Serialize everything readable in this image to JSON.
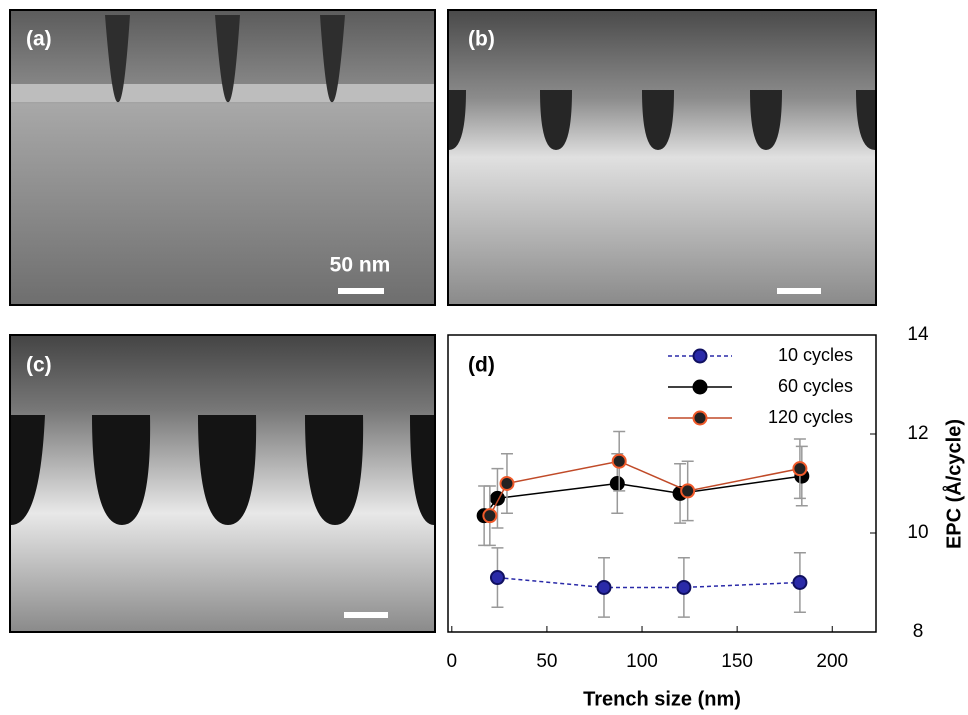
{
  "panels": [
    "(a)",
    "(b)",
    "(c)"
  ],
  "scale_bar_label": "50 nm",
  "chart_data": {
    "type": "scatter",
    "panel_label": "(d)",
    "xlabel": "Trench size (nm)",
    "ylabel": "EPC (Å/cycle)",
    "xlim": [
      -2,
      223
    ],
    "ylim": [
      8,
      14
    ],
    "xticks": [
      0,
      50,
      100,
      150,
      200
    ],
    "yticks": [
      8,
      10,
      12,
      14
    ],
    "legend": "upper right",
    "series": [
      {
        "name": "10 cycles",
        "color": "#2a2aa8",
        "marker_edge": "#101060",
        "line_style": "dashed",
        "x": [
          24,
          80,
          122,
          183
        ],
        "values": [
          9.1,
          8.9,
          8.9,
          9.0
        ],
        "errors": [
          0.6,
          0.6,
          0.6,
          0.6
        ]
      },
      {
        "name": "60 cycles",
        "color": "#000000",
        "marker_edge": "#000000",
        "line_style": "solid",
        "x": [
          17,
          24,
          87,
          120,
          184
        ],
        "values": [
          10.35,
          10.7,
          11.0,
          10.8,
          11.15
        ],
        "errors": [
          0.6,
          0.6,
          0.6,
          0.6,
          0.6
        ]
      },
      {
        "name": "120 cycles",
        "color": "#c04a28",
        "marker_edge": "#f05a2a",
        "line_style": "solid",
        "x": [
          20,
          29,
          88,
          124,
          183
        ],
        "values": [
          10.35,
          11.0,
          11.45,
          10.85,
          11.3
        ],
        "errors": [
          0.6,
          0.6,
          0.6,
          0.6,
          0.6
        ]
      }
    ]
  }
}
